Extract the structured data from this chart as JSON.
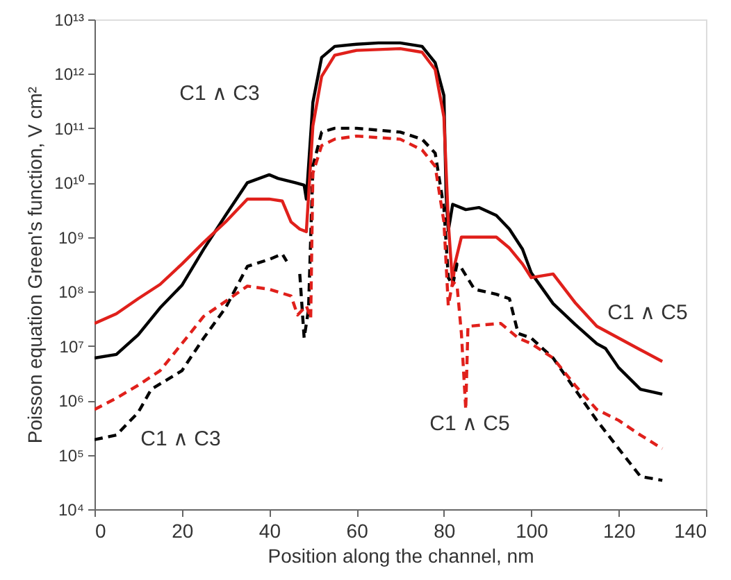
{
  "chart_data": {
    "type": "line",
    "xlabel": "Position along the channel, nm",
    "ylabel": "Poisson equation Green's function, V cm²",
    "xlim": [
      0,
      140
    ],
    "xticks": [
      0,
      20,
      40,
      60,
      80,
      100,
      120,
      140
    ],
    "ylim": [
      10000,
      10000000000000
    ],
    "log": true,
    "yticks": [
      {
        "value": 10000.0,
        "label": "10⁴"
      },
      {
        "value": 100000.0,
        "label": "10⁵"
      },
      {
        "value": 1000000.0,
        "label": "10⁶"
      },
      {
        "value": 10000000.0,
        "label": "10⁷"
      },
      {
        "value": 100000000.0,
        "label": "10⁸"
      },
      {
        "value": 1000000000.0,
        "label": "10⁹"
      },
      {
        "value": 10000000000.0,
        "label": "10¹⁰"
      },
      {
        "value": 100000000000.0,
        "label": "10¹¹"
      },
      {
        "value": 1000000000000.0,
        "label": "10¹²"
      },
      {
        "value": 10000000000000.0,
        "label": "10¹³"
      }
    ],
    "grid": false,
    "legend": false,
    "marker": "none",
    "series": [
      {
        "color": "#000000",
        "line_style": "solid",
        "x": [
          0,
          5,
          10,
          15,
          20,
          25,
          30,
          35,
          40,
          42,
          46,
          48,
          48.5,
          50,
          52,
          55,
          60,
          65,
          70,
          75,
          78,
          80,
          80.5,
          81,
          82,
          85,
          88,
          92,
          95,
          98,
          100,
          105,
          110,
          115,
          117,
          120,
          125,
          130
        ],
        "values": [
          6000000.0,
          7000000.0,
          16000000.0,
          50000000.0,
          130000000.0,
          600000000.0,
          2500000000.0,
          10000000000.0,
          14000000000.0,
          12000000000.0,
          10000000000.0,
          9000000000.0,
          5000000000.0,
          300000000000.0,
          2000000000000.0,
          3200000000000.0,
          3500000000000.0,
          3700000000000.0,
          3700000000000.0,
          3200000000000.0,
          1600000000000.0,
          400000000000.0,
          6000000000.0,
          1300000000.0,
          4000000000.0,
          3200000000.0,
          3500000000.0,
          2500000000.0,
          1400000000.0,
          600000000.0,
          220000000.0,
          60000000.0,
          25000000.0,
          11000000.0,
          9000000.0,
          4000000.0,
          1600000.0,
          1300000.0
        ]
      },
      {
        "color": "#e0201b",
        "line_style": "solid",
        "x": [
          0,
          5,
          10,
          15,
          20,
          25,
          30,
          35,
          40,
          43,
          45,
          47,
          48.5,
          50,
          52,
          55,
          60,
          70,
          75,
          78,
          80,
          81,
          82,
          82.5,
          84,
          88,
          92,
          95,
          98,
          100,
          105,
          110,
          115,
          120,
          125,
          130
        ],
        "values": [
          26000000.0,
          39000000.0,
          74000000.0,
          135000000.0,
          320000000.0,
          800000000.0,
          1900000000.0,
          5000000000.0,
          5000000000.0,
          4600000000.0,
          1900000000.0,
          1400000000.0,
          1260000000.0,
          110000000000.0,
          900000000000.0,
          2200000000000.0,
          2700000000000.0,
          2900000000000.0,
          2500000000000.0,
          1200000000000.0,
          160000000000.0,
          1900000000.0,
          130000000.0,
          320000000.0,
          1000000000.0,
          1000000000.0,
          1000000000.0,
          630000000.0,
          320000000.0,
          180000000.0,
          210000000.0,
          63000000.0,
          23000000.0,
          14000000.0,
          8500000.0,
          5200000.0
        ]
      },
      {
        "color": "#000000",
        "line_style": "dashed",
        "x": [
          0,
          5,
          10,
          13,
          17,
          20,
          25,
          30,
          35,
          40,
          43,
          44,
          45.5,
          47,
          48,
          49,
          50,
          52,
          55,
          60,
          70,
          75,
          78,
          80,
          81,
          82,
          83,
          84,
          87,
          92,
          95,
          97,
          100,
          105,
          110,
          115,
          120,
          125,
          130
        ],
        "values": [
          190000.0,
          230000.0,
          600000.0,
          1600000.0,
          2500000.0,
          3500000.0,
          14000000.0,
          50000000.0,
          290000000.0,
          390000000.0,
          490000000.0,
          360000000.0,
          null,
          210000000.0,
          14000000.0,
          47000000.0,
          20000000000.0,
          85000000000.0,
          100000000000.0,
          100000000000.0,
          85000000000.0,
          63000000000.0,
          35000000000.0,
          3400000000.0,
          180000000.0,
          130000000.0,
          320000000.0,
          270000000.0,
          110000000.0,
          89000000.0,
          74000000.0,
          17000000.0,
          14000000.0,
          6000000.0,
          1600000.0,
          430000.0,
          130000.0,
          40000.0,
          34000.0
        ]
      },
      {
        "color": "#e0201b",
        "line_style": "dashed",
        "x": [
          0,
          5,
          10,
          15,
          20,
          25,
          30,
          35,
          40,
          45,
          46.5,
          48.5,
          49.5,
          50,
          52,
          55,
          60,
          70,
          75,
          78,
          80,
          81,
          82,
          83,
          84,
          85,
          85.5,
          93,
          97,
          100,
          105,
          110,
          115,
          120,
          125,
          130
        ],
        "values": [
          680000.0,
          1100000.0,
          1900000.0,
          3500000.0,
          11000000.0,
          35000000.0,
          66000000.0,
          126000000.0,
          110000000.0,
          83000000.0,
          37000000.0,
          55000000.0,
          32000000.0,
          15000000000.0,
          48000000000.0,
          63000000000.0,
          72000000000.0,
          63000000000.0,
          40000000000.0,
          20000000000.0,
          1900000000.0,
          55000000.0,
          150000000.0,
          130000000.0,
          17000000.0,
          680000.0,
          23000000.0,
          26000000.0,
          14000000.0,
          11000000.0,
          6000000.0,
          1900000.0,
          680000.0,
          430000.0,
          230000.0,
          130000.0
        ]
      }
    ],
    "annotations": [
      "C1 ∧ C3",
      "C1 ∧ C3",
      "C1 ∧ C5",
      "C1 ∧ C5"
    ]
  }
}
